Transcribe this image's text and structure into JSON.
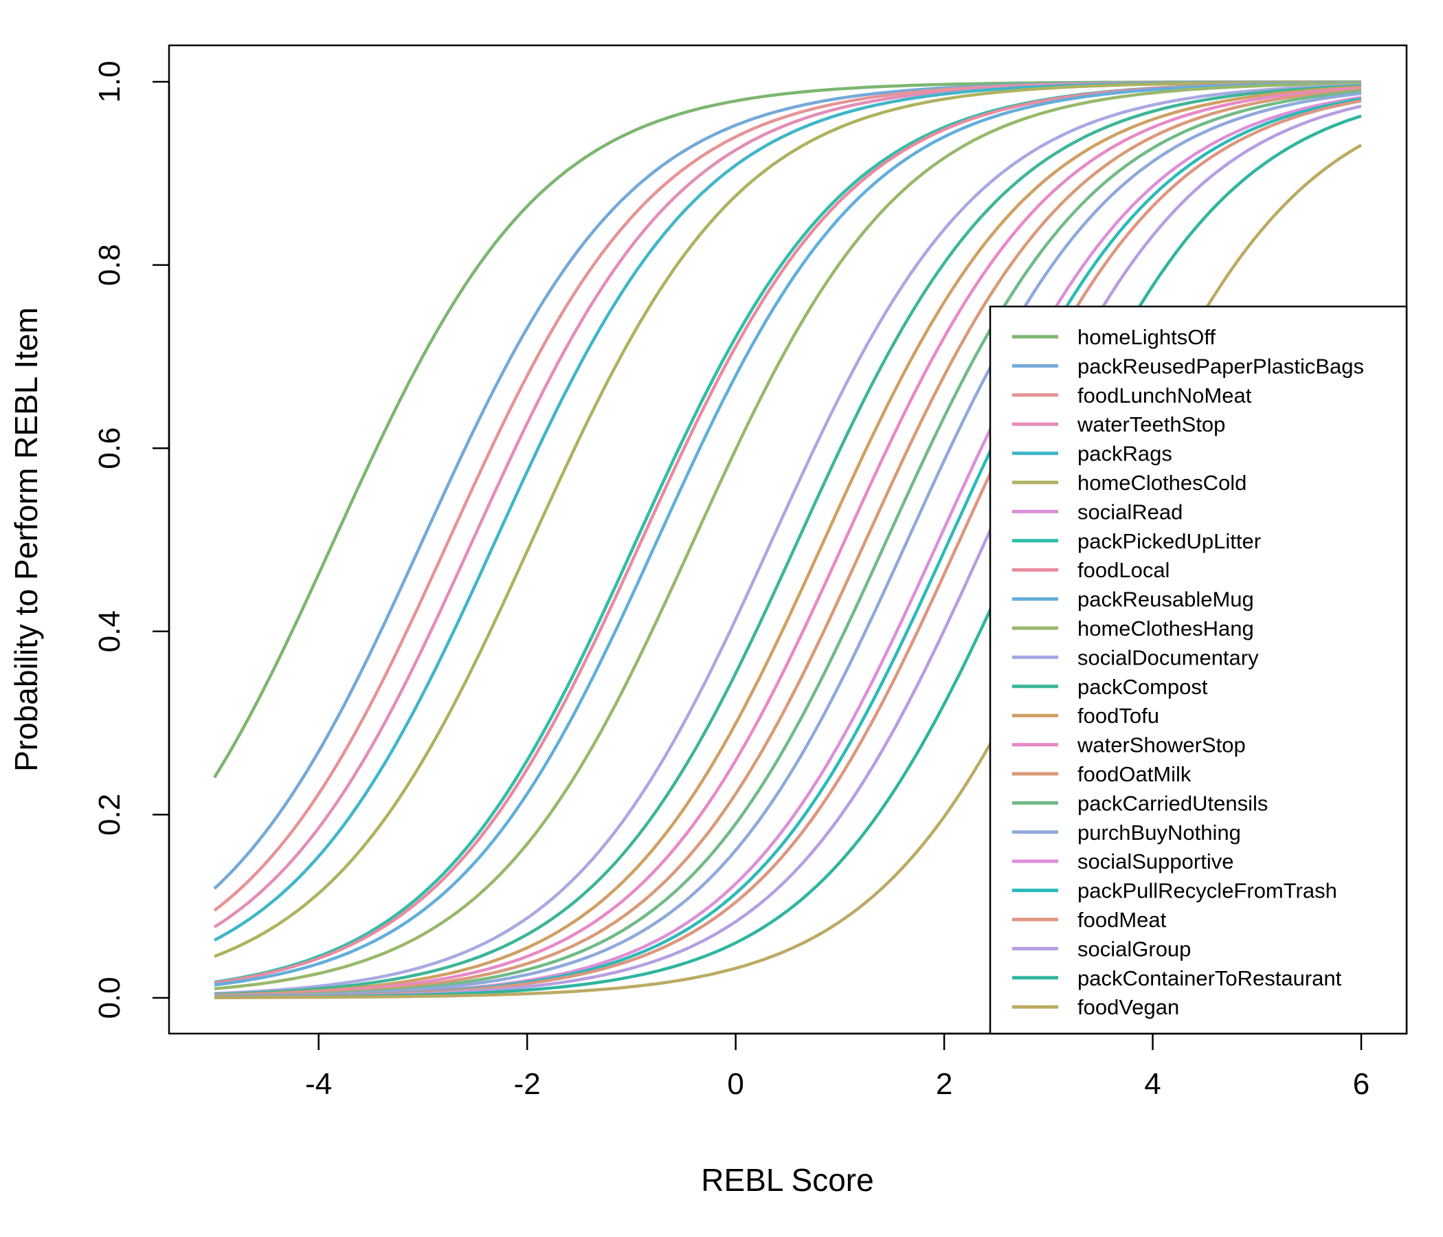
{
  "chart_data": {
    "type": "line",
    "title": "",
    "xlabel": "REBL Score",
    "ylabel": "Probability to Perform REBL Item",
    "xlim": [
      -5,
      6
    ],
    "ylim": [
      0,
      1
    ],
    "x_ticks": [
      -4,
      -2,
      0,
      2,
      4,
      6
    ],
    "y_ticks": [
      0.0,
      0.2,
      0.4,
      0.6,
      0.8,
      1.0
    ],
    "x_tick_labels": [
      "-4",
      "-2",
      "0",
      "2",
      "4",
      "6"
    ],
    "y_tick_labels": [
      "0.0",
      "0.2",
      "0.4",
      "0.6",
      "0.8",
      "1.0"
    ],
    "x_range": [
      -5,
      6
    ],
    "legend_position": "bottom-right",
    "series": [
      {
        "name": "homeLightsOff",
        "color": "#7cb670",
        "difficulty": -3.85,
        "discrimination": 1.0
      },
      {
        "name": "packReusedPaperPlasticBags",
        "color": "#74a9d8",
        "difficulty": -3.0,
        "discrimination": 1.0
      },
      {
        "name": "foodLunchNoMeat",
        "color": "#e69494",
        "difficulty": -2.75,
        "discrimination": 1.0
      },
      {
        "name": "waterTeethStop",
        "color": "#e38db8",
        "difficulty": -2.52,
        "discrimination": 1.0
      },
      {
        "name": "packRags",
        "color": "#3fb6c9",
        "difficulty": -2.3,
        "discrimination": 1.0
      },
      {
        "name": "homeClothesCold",
        "color": "#b0b15f",
        "difficulty": -1.95,
        "discrimination": 1.0
      },
      {
        "name": "socialRead",
        "color": "#d990d6",
        "difficulty": -0.95,
        "discrimination": 1.0
      },
      {
        "name": "packPickedUpLitter",
        "color": "#2ebfa9",
        "difficulty": -0.95,
        "discrimination": 1.0
      },
      {
        "name": "foodLocal",
        "color": "#e98aa0",
        "difficulty": -0.9,
        "discrimination": 1.0
      },
      {
        "name": "packReusableMug",
        "color": "#62aedc",
        "difficulty": -0.75,
        "discrimination": 1.0
      },
      {
        "name": "homeClothesHang",
        "color": "#98b86a",
        "difficulty": -0.4,
        "discrimination": 1.0
      },
      {
        "name": "socialDocumentary",
        "color": "#a8a8e3",
        "difficulty": 0.35,
        "discrimination": 1.0
      },
      {
        "name": "packCompost",
        "color": "#3db598",
        "difficulty": 0.6,
        "discrimination": 1.0
      },
      {
        "name": "foodTofu",
        "color": "#cfa063",
        "difficulty": 0.85,
        "discrimination": 1.0
      },
      {
        "name": "waterShowerStop",
        "color": "#e889c7",
        "difficulty": 1.05,
        "discrimination": 1.0
      },
      {
        "name": "foodOatMilk",
        "color": "#d99a78",
        "difficulty": 1.25,
        "discrimination": 1.0
      },
      {
        "name": "packCarriedUtensils",
        "color": "#70bb87",
        "difficulty": 1.45,
        "discrimination": 1.0
      },
      {
        "name": "purchBuyNothing",
        "color": "#8fa9dc",
        "difficulty": 1.65,
        "discrimination": 1.0
      },
      {
        "name": "socialSupportive",
        "color": "#dc8fd8",
        "difficulty": 1.95,
        "discrimination": 1.0
      },
      {
        "name": "packPullRecycleFromTrash",
        "color": "#2bbab8",
        "difficulty": 2.05,
        "discrimination": 1.0
      },
      {
        "name": "foodMeat",
        "color": "#dd9680",
        "difficulty": 2.15,
        "discrimination": 1.0
      },
      {
        "name": "socialGroup",
        "color": "#b69ee2",
        "difficulty": 2.4,
        "discrimination": 1.0
      },
      {
        "name": "packContainerToRestaurant",
        "color": "#2fb59f",
        "difficulty": 2.75,
        "discrimination": 1.0
      },
      {
        "name": "foodVegan",
        "color": "#bcaa63",
        "difficulty": 3.4,
        "discrimination": 1.0
      }
    ]
  }
}
